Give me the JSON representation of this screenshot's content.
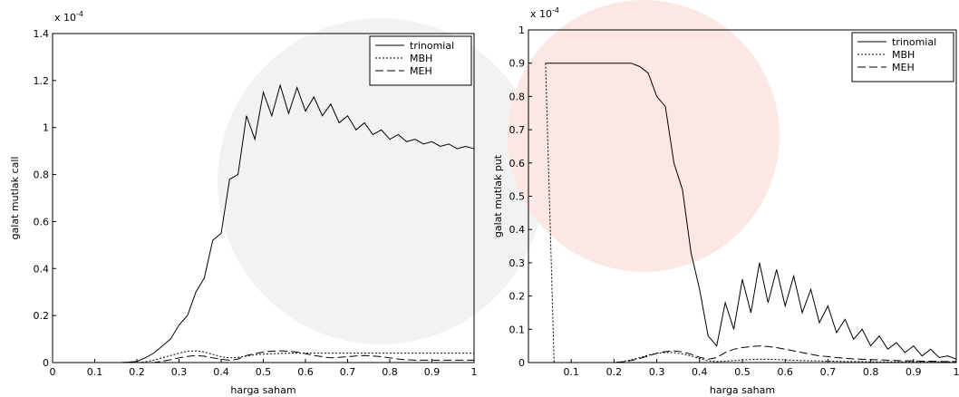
{
  "chart_data": [
    {
      "type": "line",
      "exponent_base": "x 10",
      "exponent": "-4",
      "xlabel": "harga saham",
      "ylabel": "galat mutlak call",
      "xlim": [
        0,
        1
      ],
      "ylim": [
        0,
        1.4
      ],
      "xticks": [
        0,
        0.1,
        0.2,
        0.3,
        0.4,
        0.5,
        0.6,
        0.7,
        0.8,
        0.9,
        1
      ],
      "yticks": [
        0,
        0.2,
        0.4,
        0.6,
        0.8,
        1,
        1.2,
        1.4
      ],
      "legend": "upper right",
      "x": [
        0.04,
        0.06,
        0.08,
        0.1,
        0.12,
        0.14,
        0.16,
        0.18,
        0.2,
        0.22,
        0.24,
        0.26,
        0.28,
        0.3,
        0.32,
        0.34,
        0.36,
        0.38,
        0.4,
        0.42,
        0.44,
        0.46,
        0.48,
        0.5,
        0.52,
        0.54,
        0.56,
        0.58,
        0.6,
        0.62,
        0.64,
        0.66,
        0.68,
        0.7,
        0.72,
        0.74,
        0.76,
        0.78,
        0.8,
        0.82,
        0.84,
        0.86,
        0.88,
        0.9,
        0.92,
        0.94,
        0.96,
        0.98,
        1
      ],
      "series": [
        {
          "name": "trinomial",
          "color": "#000000",
          "dash": "none",
          "values": [
            0,
            0,
            0,
            0,
            0,
            0,
            0,
            0.002,
            0.005,
            0.02,
            0.04,
            0.07,
            0.1,
            0.16,
            0.2,
            0.3,
            0.36,
            0.52,
            0.55,
            0.78,
            0.8,
            1.05,
            0.95,
            1.15,
            1.05,
            1.18,
            1.06,
            1.17,
            1.07,
            1.13,
            1.05,
            1.1,
            1.02,
            1.05,
            0.99,
            1.02,
            0.97,
            0.99,
            0.95,
            0.97,
            0.94,
            0.95,
            0.93,
            0.94,
            0.92,
            0.93,
            0.91,
            0.92,
            0.91
          ]
        },
        {
          "name": "MBH",
          "color": "#000000",
          "dash": "2,2",
          "values": [
            0,
            0,
            0,
            0,
            0,
            0,
            0,
            0,
            0,
            0.003,
            0.01,
            0.02,
            0.03,
            0.04,
            0.048,
            0.05,
            0.045,
            0.035,
            0.025,
            0.02,
            0.022,
            0.028,
            0.033,
            0.036,
            0.038,
            0.039,
            0.04,
            0.04,
            0.04,
            0.04,
            0.04,
            0.04,
            0.04,
            0.04,
            0.04,
            0.04,
            0.04,
            0.04,
            0.04,
            0.04,
            0.04,
            0.04,
            0.04,
            0.04,
            0.04,
            0.04,
            0.04,
            0.04,
            0.04
          ]
        },
        {
          "name": "MEH",
          "color": "#000000",
          "dash": "9,4",
          "values": [
            0,
            0,
            0,
            0,
            0,
            0,
            0,
            0,
            0,
            0,
            0,
            0.005,
            0.012,
            0.02,
            0.026,
            0.03,
            0.027,
            0.02,
            0.014,
            0.01,
            0.015,
            0.03,
            0.038,
            0.045,
            0.048,
            0.05,
            0.048,
            0.045,
            0.038,
            0.03,
            0.025,
            0.02,
            0.022,
            0.025,
            0.028,
            0.03,
            0.028,
            0.025,
            0.02,
            0.015,
            0.012,
            0.01,
            0.01,
            0.01,
            0.01,
            0.01,
            0.01,
            0.01,
            0.01
          ]
        }
      ]
    },
    {
      "type": "line",
      "exponent_base": "x 10",
      "exponent": "-4",
      "xlabel": "harga saham",
      "ylabel": "galat mutlak put",
      "xlim": [
        0,
        1
      ],
      "ylim": [
        0,
        1
      ],
      "xticks": [
        0.1,
        0.2,
        0.3,
        0.4,
        0.5,
        0.6,
        0.7,
        0.8,
        0.9,
        1
      ],
      "yticks": [
        0,
        0.1,
        0.2,
        0.3,
        0.4,
        0.5,
        0.6,
        0.7,
        0.8,
        0.9,
        1
      ],
      "legend": "upper right",
      "x": [
        0.04,
        0.06,
        0.08,
        0.1,
        0.12,
        0.14,
        0.16,
        0.18,
        0.2,
        0.22,
        0.24,
        0.26,
        0.28,
        0.3,
        0.32,
        0.34,
        0.36,
        0.38,
        0.4,
        0.42,
        0.44,
        0.46,
        0.48,
        0.5,
        0.52,
        0.54,
        0.56,
        0.58,
        0.6,
        0.62,
        0.64,
        0.66,
        0.68,
        0.7,
        0.72,
        0.74,
        0.76,
        0.78,
        0.8,
        0.82,
        0.84,
        0.86,
        0.88,
        0.9,
        0.92,
        0.94,
        0.96,
        0.98,
        1
      ],
      "series": [
        {
          "name": "trinomial",
          "color": "#000000",
          "dash": "none",
          "values": [
            0.9,
            0.9,
            0.9,
            0.9,
            0.9,
            0.9,
            0.9,
            0.9,
            0.9,
            0.9,
            0.9,
            0.89,
            0.87,
            0.8,
            0.77,
            0.6,
            0.52,
            0.33,
            0.22,
            0.08,
            0.05,
            0.18,
            0.1,
            0.25,
            0.15,
            0.3,
            0.18,
            0.28,
            0.17,
            0.26,
            0.15,
            0.22,
            0.12,
            0.17,
            0.09,
            0.13,
            0.07,
            0.1,
            0.05,
            0.08,
            0.04,
            0.06,
            0.03,
            0.05,
            0.02,
            0.04,
            0.015,
            0.02,
            0.01
          ]
        },
        {
          "name": "MBH",
          "color": "#000000",
          "dash": "2,2",
          "values": [
            0.9,
            0,
            0,
            0,
            0,
            0,
            0,
            0,
            0,
            0.003,
            0.008,
            0.015,
            0.022,
            0.028,
            0.03,
            0.03,
            0.026,
            0.02,
            0.012,
            0.005,
            0.003,
            0.004,
            0.006,
            0.008,
            0.009,
            0.01,
            0.01,
            0.009,
            0.008,
            0.007,
            0.006,
            0.005,
            0.005,
            0.004,
            0.004,
            0.003,
            0.003,
            0.003,
            0.002,
            0.002,
            0.002,
            0.002,
            0.002,
            0.002,
            0.002,
            0.002,
            0.002,
            0.002,
            0.002
          ]
        },
        {
          "name": "MEH",
          "color": "#000000",
          "dash": "9,4",
          "values": [
            0,
            0,
            0,
            0,
            0,
            0,
            0,
            0,
            0,
            0.002,
            0.006,
            0.012,
            0.02,
            0.028,
            0.033,
            0.035,
            0.032,
            0.025,
            0.016,
            0.01,
            0.015,
            0.03,
            0.04,
            0.045,
            0.048,
            0.05,
            0.048,
            0.045,
            0.04,
            0.035,
            0.03,
            0.025,
            0.02,
            0.018,
            0.015,
            0.013,
            0.011,
            0.01,
            0.009,
            0.008,
            0.007,
            0.006,
            0.005,
            0.005,
            0.004,
            0.004,
            0.003,
            0.003,
            0.003
          ]
        }
      ]
    }
  ]
}
